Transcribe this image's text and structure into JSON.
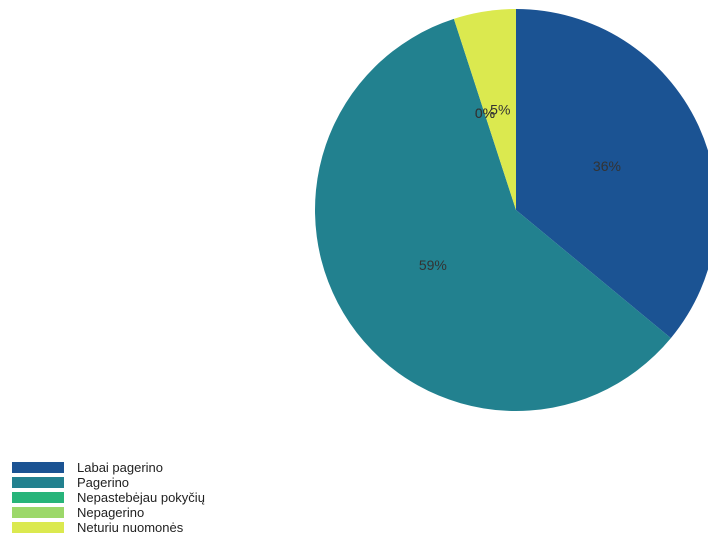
{
  "chart_data": {
    "type": "pie",
    "categories": [
      "Labai pagerino",
      "Pagerino",
      "Nepastebėjau pokyčių",
      "Nepagerino",
      "Neturiu nuomonės"
    ],
    "values": [
      36,
      59,
      0,
      0,
      5
    ],
    "labels": [
      "36%",
      "59%",
      "0%",
      "0%",
      "5%"
    ],
    "colors": [
      "#1b5393",
      "#22818f",
      "#27b47a",
      "#9cd86a",
      "#dbe94f"
    ],
    "legend_position": "bottom-left"
  }
}
